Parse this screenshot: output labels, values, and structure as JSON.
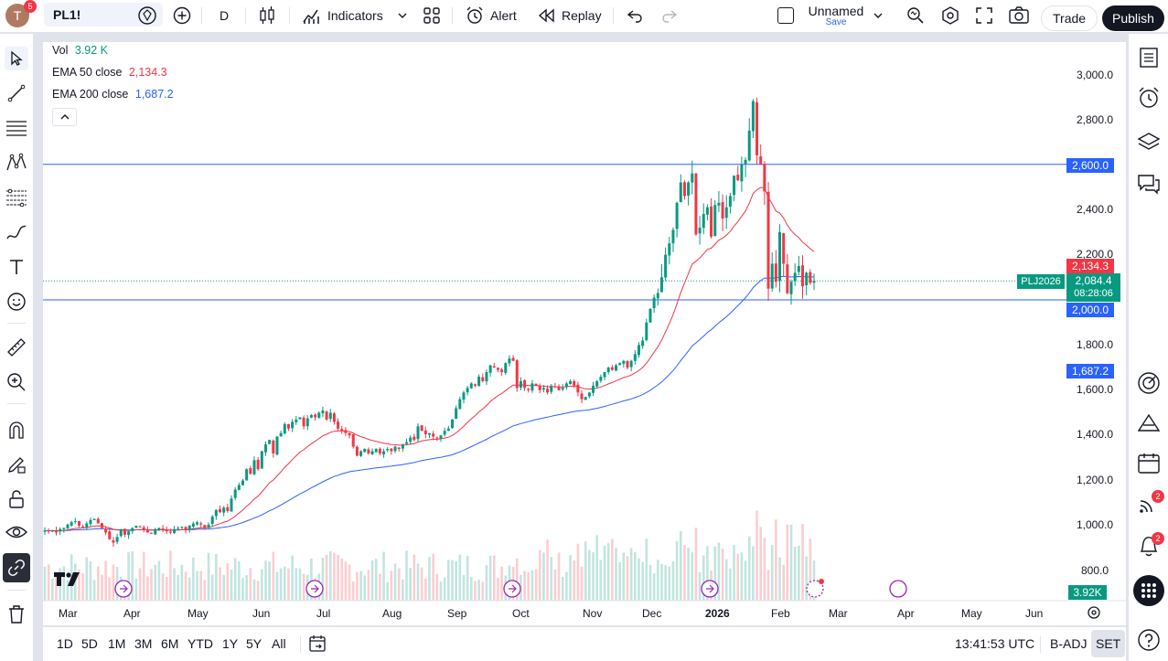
{
  "user": {
    "initial": "T",
    "notifications": "5"
  },
  "symbol": "PL1!",
  "interval": "D",
  "toolbar": {
    "indicators": "Indicators",
    "alert": "Alert",
    "replay": "Replay",
    "layout_name": "Unnamed",
    "layout_save": "Save",
    "trade": "Trade",
    "publish": "Publish"
  },
  "legend": {
    "vol_label": "Vol",
    "vol_value": "3.92 K",
    "ema50_label": "EMA 50 close",
    "ema50_value": "2,134.3",
    "ema200_label": "EMA 200 close",
    "ema200_value": "1,687.2"
  },
  "price_axis": [
    "3,000.0",
    "2,800.0",
    "2,400.0",
    "2,200.0",
    "1,800.0",
    "1,600.0",
    "1,400.0",
    "1,200.0",
    "1,000.0",
    "800.0"
  ],
  "price_tags": {
    "line_2600": "2,600.0",
    "ema50": "2,134.3",
    "symbol_tag": "PLJ2026",
    "last_price": "2,084.4",
    "countdown": "08:28:06",
    "line_2000": "2,000.0",
    "ema200": "1,687.2",
    "volume": "3.92K"
  },
  "time_axis": [
    "Mar",
    "Apr",
    "May",
    "Jun",
    "Jul",
    "Aug",
    "Sep",
    "Oct",
    "Nov",
    "Dec",
    "2026",
    "Feb",
    "Mar",
    "Apr",
    "May",
    "Jun"
  ],
  "ranges": [
    "1D",
    "5D",
    "1M",
    "3M",
    "6M",
    "YTD",
    "1Y",
    "5Y",
    "All"
  ],
  "status": {
    "clock": "13:41:53 UTC",
    "adj": "B-ADJ",
    "session": "SET"
  },
  "right_badges": {
    "ideas": "2",
    "alerts": "2"
  },
  "colors": {
    "up": "#089981",
    "down": "#f23645",
    "ema50": "#f23645",
    "ema200": "#2962ff",
    "hline": "#2962ff",
    "accent": "#2962ff"
  },
  "chart_data": {
    "type": "candlestick",
    "hlines": [
      2600,
      2000
    ],
    "closes": [
      978,
      975,
      980,
      970,
      985,
      990,
      1005,
      1015,
      1020,
      1000,
      995,
      1010,
      1025,
      1030,
      1010,
      990,
      970,
      940,
      925,
      950,
      985,
      960,
      975,
      990,
      1000,
      995,
      980,
      970,
      965,
      985,
      990,
      980,
      975,
      970,
      985,
      990,
      995,
      980,
      1000,
      1010,
      1015,
      1005,
      990,
      1005,
      1040,
      1070,
      1060,
      1080,
      1065,
      1120,
      1160,
      1180,
      1200,
      1250,
      1230,
      1290,
      1250,
      1330,
      1360,
      1380,
      1320,
      1395,
      1410,
      1450,
      1430,
      1460,
      1470,
      1480,
      1440,
      1475,
      1490,
      1480,
      1500,
      1510,
      1470,
      1500,
      1460,
      1430,
      1420,
      1410,
      1400,
      1350,
      1310,
      1330,
      1340,
      1320,
      1330,
      1340,
      1320,
      1330,
      1340,
      1330,
      1350,
      1340,
      1360,
      1370,
      1390,
      1380,
      1440,
      1420,
      1405,
      1410,
      1395,
      1390,
      1400,
      1420,
      1430,
      1470,
      1520,
      1560,
      1590,
      1610,
      1630,
      1620,
      1660,
      1640,
      1680,
      1710,
      1700,
      1690,
      1680,
      1720,
      1740,
      1730,
      1610,
      1640,
      1610,
      1600,
      1630,
      1620,
      1600,
      1610,
      1590,
      1620,
      1615,
      1600,
      1610,
      1630,
      1640,
      1620,
      1590,
      1560,
      1570,
      1590,
      1620,
      1640,
      1660,
      1680,
      1700,
      1690,
      1710,
      1720,
      1730,
      1700,
      1730,
      1760,
      1800,
      1820,
      1900,
      1960,
      2010,
      2030,
      2100,
      2200,
      2250,
      2310,
      2430,
      2520,
      2460,
      2520,
      2560,
      2290,
      2320,
      2380,
      2410,
      2280,
      2420,
      2430,
      2360,
      2410,
      2460,
      2550,
      2530,
      2600,
      2620,
      2750,
      2880,
      2640,
      2600,
      2480,
      2050,
      2160,
      2080,
      2300,
      2160,
      2030,
      2080,
      2120,
      2150,
      2060,
      2120,
      2075,
      2084
    ],
    "ema50_last": 2134.3,
    "ema200_last": 1687.2,
    "volume_last": "3.92K",
    "ylim": [
      800,
      3000
    ]
  }
}
